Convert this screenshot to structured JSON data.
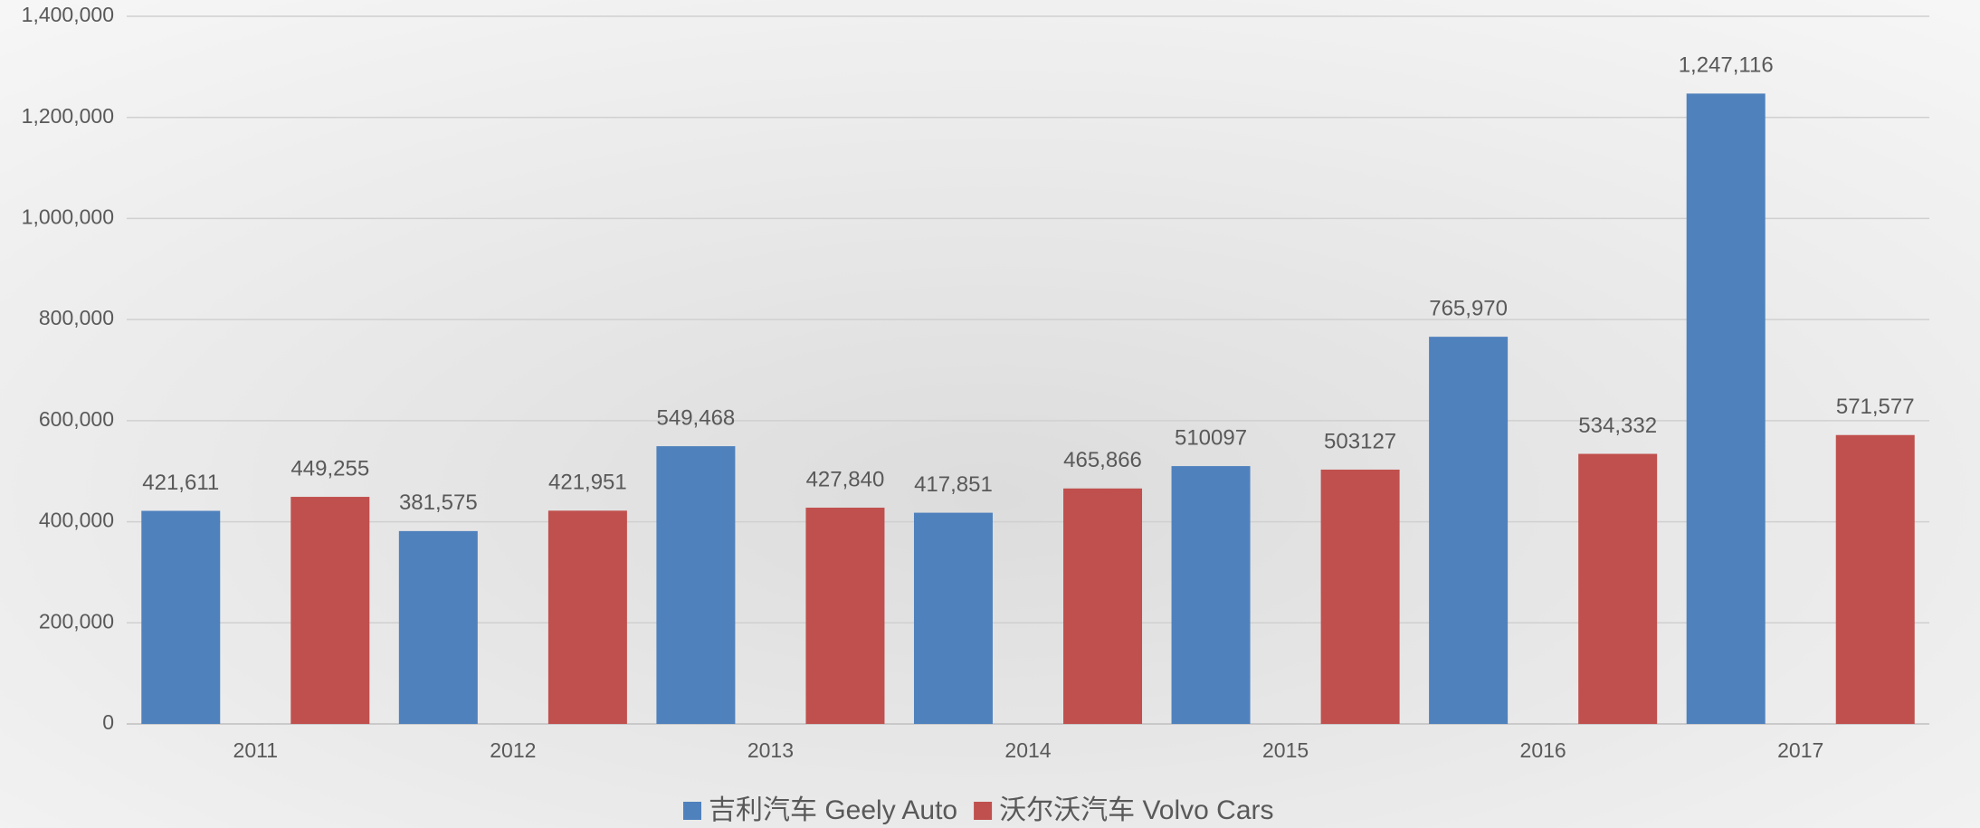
{
  "chart_data": {
    "type": "bar",
    "categories": [
      "2011",
      "2012",
      "2013",
      "2014",
      "2015",
      "2016",
      "2017"
    ],
    "series": [
      {
        "name": "吉利汽车 Geely Auto",
        "color": "#4f81bd",
        "values": [
          421611,
          381575,
          549468,
          417851,
          510097,
          765970,
          1247116
        ],
        "value_labels": [
          "421,611",
          "381,575",
          "549,468",
          "417,851",
          "510097",
          "765,970",
          "1,247,116"
        ]
      },
      {
        "name": "沃尔沃汽车 Volvo Cars",
        "color": "#c0504d",
        "values": [
          449255,
          421951,
          427840,
          465866,
          503127,
          534332,
          571577
        ],
        "value_labels": [
          "449,255",
          "421,951",
          "427,840",
          "465,866",
          "503127",
          "534,332",
          "571,577"
        ]
      }
    ],
    "ylim": [
      0,
      1400000
    ],
    "yticks": [
      0,
      {
        "value": 200000,
        "label": "200,000"
      },
      {
        "value": 400000,
        "label": "400,000"
      },
      {
        "value": 600000,
        "label": "600,000"
      },
      {
        "value": 800000,
        "label": "800,000"
      },
      {
        "value": 1000000,
        "label": "1,000,000"
      },
      {
        "value": 1200000,
        "label": "1,200,000"
      },
      {
        "value": 1400000,
        "label": "1,400,000"
      }
    ],
    "grid": true,
    "legend": "bottom"
  }
}
